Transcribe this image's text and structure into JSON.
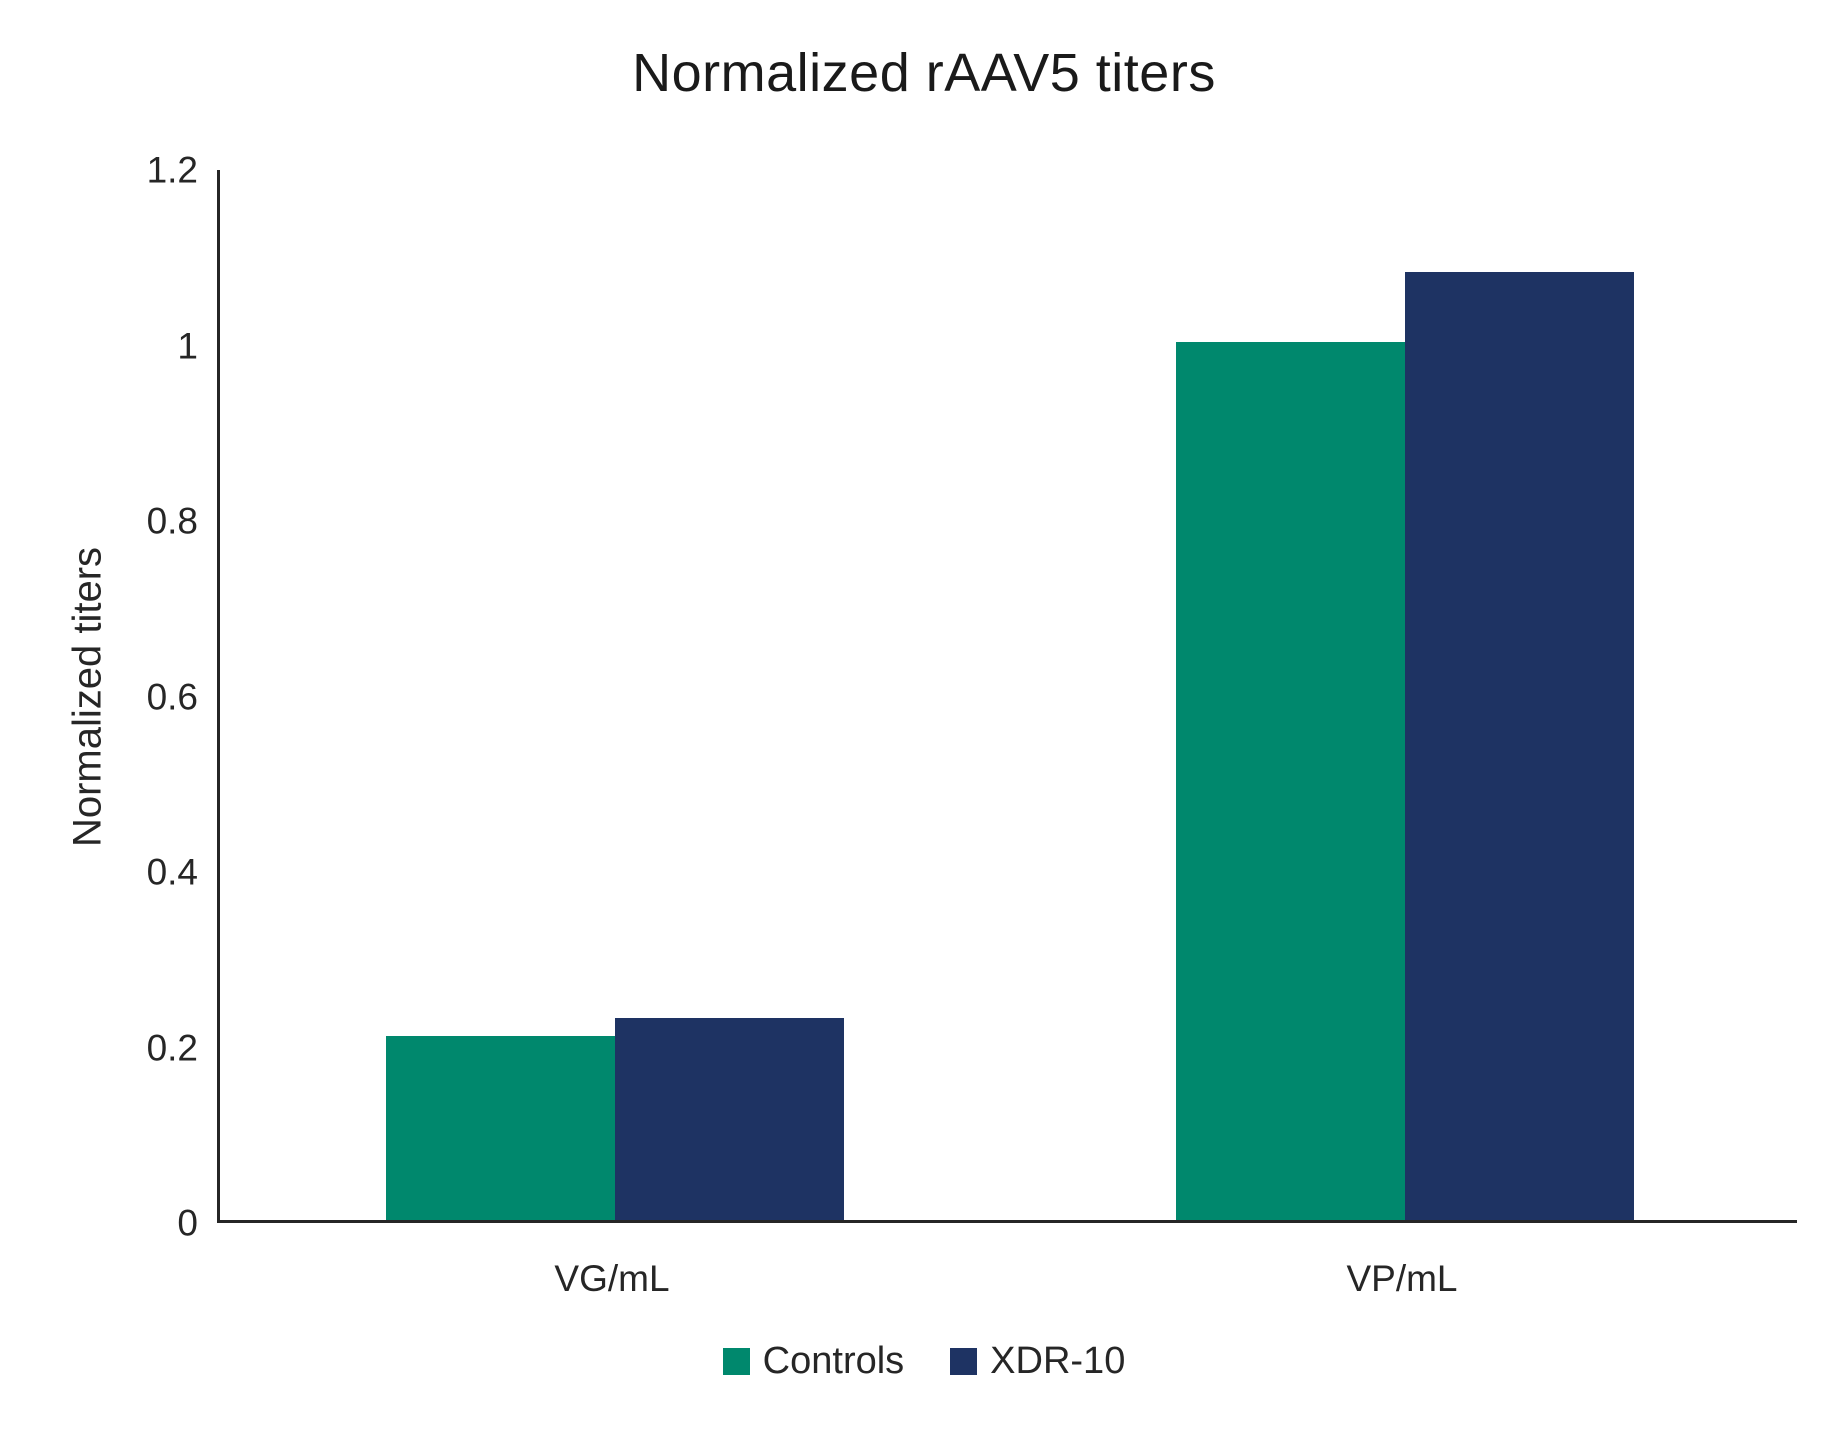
{
  "chart_data": {
    "type": "bar",
    "title": "Normalized rAAV5 titers",
    "xlabel": "",
    "ylabel": "Normalized titers",
    "categories": [
      "VG/mL",
      "VP/mL"
    ],
    "series": [
      {
        "name": "Controls",
        "color": "#00886D",
        "values": [
          0.21,
          1.0
        ]
      },
      {
        "name": "XDR-10",
        "color": "#1E3363",
        "values": [
          0.23,
          1.08
        ]
      }
    ],
    "ylim": [
      0,
      1.2
    ],
    "yticks": [
      0,
      0.2,
      0.4,
      0.6,
      0.8,
      1,
      1.2
    ],
    "ytick_labels": [
      "0",
      "0.2",
      "0.4",
      "0.6",
      "0.8",
      "1",
      "1.2"
    ],
    "grid": false,
    "legend_position": "bottom",
    "axis_color": "#262626",
    "text_color": "#262626"
  }
}
